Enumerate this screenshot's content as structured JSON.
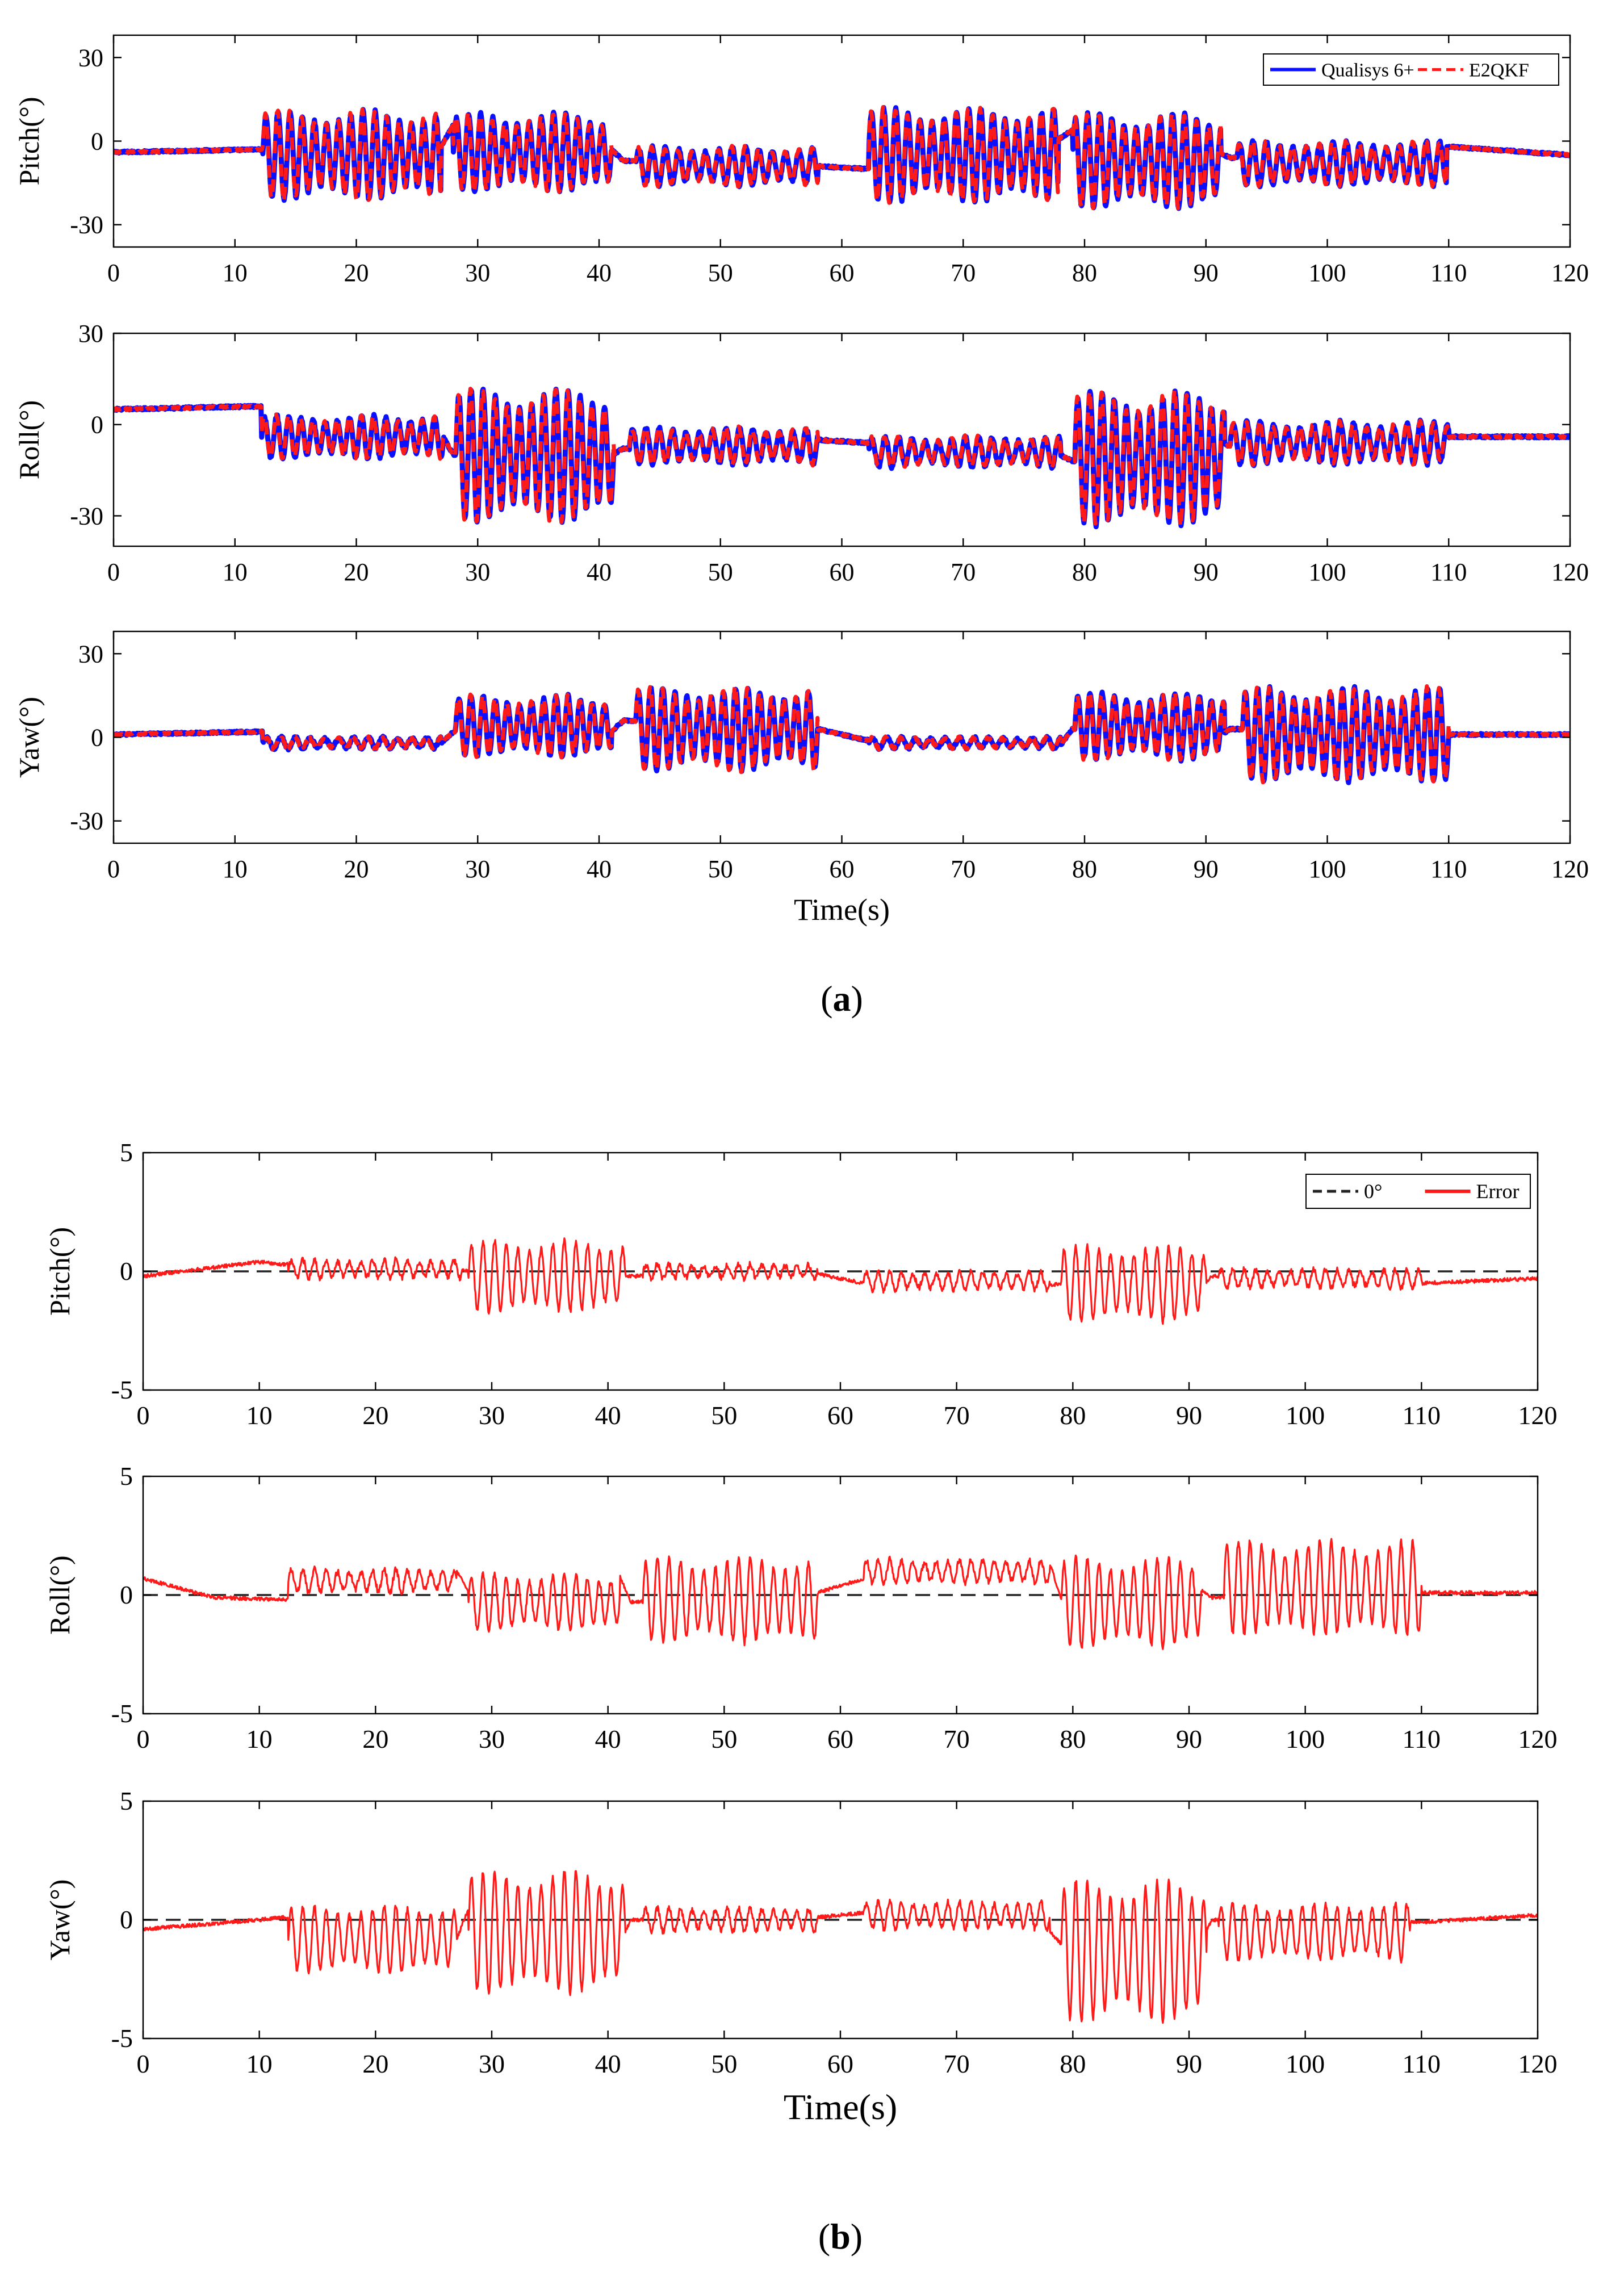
{
  "chart_data": [
    {
      "panel": "a",
      "type": "line",
      "panel_label_letter": "a",
      "panel_label_pre": "(",
      "panel_label_post": ")",
      "xlabel": "Time(s)",
      "xlim": [
        0,
        120
      ],
      "x_ticks": [
        0,
        10,
        20,
        30,
        40,
        50,
        60,
        70,
        80,
        90,
        100,
        110,
        120
      ],
      "legend": [
        {
          "name": "Qualisys 6+",
          "color": "#0a10ff",
          "style": "solid"
        },
        {
          "name": "E2QKF",
          "color": "#ff1a1a",
          "style": "dashed"
        }
      ],
      "subplots": [
        {
          "ylabel": "Pitch(°)",
          "ylim": [
            -38,
            38
          ],
          "y_ticks": [
            -30,
            0,
            30
          ],
          "baseline_points": [
            [
              0,
              -4
            ],
            [
              12,
              -3
            ],
            [
              27,
              -2
            ],
            [
              28,
              6
            ],
            [
              41,
              -3
            ],
            [
              42,
              -7
            ],
            [
              58,
              -9
            ],
            [
              62,
              -10
            ],
            [
              78,
              1
            ],
            [
              79,
              4
            ],
            [
              91,
              -4
            ],
            [
              92,
              -6
            ],
            [
              110,
              -2
            ],
            [
              120,
              -5
            ]
          ],
          "oscillation_segments": [
            {
              "t0": 12.3,
              "t1": 27.0,
              "center": -5,
              "amp": 16,
              "period": 1.0
            },
            {
              "t0": 28.0,
              "t1": 41.0,
              "center": -4,
              "amp": 14,
              "period": 1.0
            },
            {
              "t0": 43.0,
              "t1": 58.0,
              "center": -9,
              "amp": 7,
              "period": 1.1
            },
            {
              "t0": 62.2,
              "t1": 77.8,
              "center": -5,
              "amp": 17,
              "period": 1.0
            },
            {
              "t0": 79.0,
              "t1": 91.2,
              "center": -7,
              "amp": 17,
              "period": 1.0
            },
            {
              "t0": 92.5,
              "t1": 109.8,
              "center": -8,
              "amp": 8,
              "period": 1.1
            }
          ]
        },
        {
          "ylabel": "Roll(°)",
          "ylim": [
            -40,
            30
          ],
          "y_ticks": [
            -30,
            0,
            30
          ],
          "baseline_points": [
            [
              0,
              5
            ],
            [
              12,
              6
            ],
            [
              27,
              -3
            ],
            [
              28,
              -10
            ],
            [
              41,
              -10
            ],
            [
              42,
              -8
            ],
            [
              58,
              -5
            ],
            [
              62,
              -6
            ],
            [
              78,
              -10
            ],
            [
              79,
              -12
            ],
            [
              91,
              -6
            ],
            [
              92,
              -7
            ],
            [
              110,
              -4
            ],
            [
              120,
              -4
            ]
          ],
          "oscillation_segments": [
            {
              "t0": 12.2,
              "t1": 27.2,
              "center": -4,
              "amp": 7,
              "period": 1.0
            },
            {
              "t0": 28.2,
              "t1": 41.2,
              "center": -10,
              "amp": 22,
              "period": 1.0
            },
            {
              "t0": 42.5,
              "t1": 58.0,
              "center": -7,
              "amp": 6,
              "period": 1.1
            },
            {
              "t0": 62.2,
              "t1": 78.0,
              "center": -9,
              "amp": 5,
              "period": 1.1
            },
            {
              "t0": 79.2,
              "t1": 91.5,
              "center": -11,
              "amp": 22,
              "period": 1.0
            },
            {
              "t0": 92.0,
              "t1": 110.0,
              "center": -6,
              "amp": 7,
              "period": 1.1
            }
          ]
        },
        {
          "ylabel": "Yaw(°)",
          "ylim": [
            -38,
            38
          ],
          "y_ticks": [
            -30,
            0,
            30
          ],
          "baseline_points": [
            [
              0,
              1
            ],
            [
              12,
              2
            ],
            [
              27,
              -2
            ],
            [
              28,
              2
            ],
            [
              41,
              2
            ],
            [
              42,
              6
            ],
            [
              58,
              3
            ],
            [
              62,
              -1
            ],
            [
              78,
              -3
            ],
            [
              79,
              3
            ],
            [
              91,
              0
            ],
            [
              92,
              3
            ],
            [
              110,
              1
            ],
            [
              120,
              1
            ]
          ],
          "oscillation_segments": [
            {
              "t0": 12.3,
              "t1": 27.0,
              "center": -2,
              "amp": 2,
              "period": 1.2
            },
            {
              "t0": 28.2,
              "t1": 41.0,
              "center": 4,
              "amp": 11,
              "period": 1.0
            },
            {
              "t0": 43.0,
              "t1": 58.0,
              "center": 3,
              "amp": 15,
              "period": 1.0
            },
            {
              "t0": 62.2,
              "t1": 78.0,
              "center": -2,
              "amp": 2,
              "period": 1.2
            },
            {
              "t0": 79.2,
              "t1": 91.5,
              "center": 4,
              "amp": 12,
              "period": 1.0
            },
            {
              "t0": 93.0,
              "t1": 110.0,
              "center": 1,
              "amp": 17,
              "period": 1.0
            }
          ]
        }
      ]
    },
    {
      "panel": "b",
      "type": "line",
      "panel_label_letter": "b",
      "panel_label_pre": "(",
      "panel_label_post": ")",
      "xlabel": "Time(s)",
      "xlim": [
        0,
        120
      ],
      "x_ticks": [
        0,
        10,
        20,
        30,
        40,
        50,
        60,
        70,
        80,
        90,
        100,
        110,
        120
      ],
      "legend": [
        {
          "name": "0°",
          "color": "#222222",
          "style": "dashed"
        },
        {
          "name": "Error",
          "color": "#ff1a1a",
          "style": "solid"
        }
      ],
      "subplots": [
        {
          "ylabel": "Pitch(°)",
          "ylim": [
            -5,
            5
          ],
          "y_ticks": [
            -5,
            0,
            5
          ],
          "baseline_points": [
            [
              0,
              -0.2
            ],
            [
              10,
              0.4
            ],
            [
              12,
              0.3
            ],
            [
              27,
              0.1
            ],
            [
              28,
              0
            ],
            [
              41,
              -0.3
            ],
            [
              42,
              -0.2
            ],
            [
              58,
              -0.1
            ],
            [
              62,
              -0.5
            ],
            [
              78,
              -0.6
            ],
            [
              79,
              -0.5
            ],
            [
              91,
              -0.6
            ],
            [
              92,
              -0.2
            ],
            [
              110,
              -0.5
            ],
            [
              120,
              -0.3
            ]
          ],
          "oscillation_segments": [
            {
              "t0": 12.5,
              "t1": 27.5,
              "center": 0.1,
              "amp": 0.4,
              "period": 1.0
            },
            {
              "t0": 28.0,
              "t1": 41.5,
              "center": -0.2,
              "amp": 1.5,
              "period": 1.0
            },
            {
              "t0": 43.0,
              "t1": 58.0,
              "center": 0,
              "amp": 0.3,
              "period": 1.0
            },
            {
              "t0": 62.0,
              "t1": 78.0,
              "center": -0.4,
              "amp": 0.4,
              "period": 1.0
            },
            {
              "t0": 79.0,
              "t1": 91.5,
              "center": -0.5,
              "amp": 1.6,
              "period": 1.0
            },
            {
              "t0": 92.5,
              "t1": 110.0,
              "center": -0.3,
              "amp": 0.4,
              "period": 1.0
            }
          ]
        },
        {
          "ylabel": "Roll(°)",
          "ylim": [
            -5,
            5
          ],
          "y_ticks": [
            -5,
            0,
            5
          ],
          "baseline_points": [
            [
              0,
              0.7
            ],
            [
              6,
              -0.1
            ],
            [
              12,
              -0.2
            ],
            [
              27,
              1.0
            ],
            [
              28,
              0.2
            ],
            [
              41,
              0.8
            ],
            [
              42,
              -0.3
            ],
            [
              58,
              0.1
            ],
            [
              62,
              0.7
            ],
            [
              78,
              1.4
            ],
            [
              79,
              -0.2
            ],
            [
              91,
              0.2
            ],
            [
              92,
              -0.1
            ],
            [
              110,
              0.1
            ],
            [
              120,
              0.1
            ]
          ],
          "oscillation_segments": [
            {
              "t0": 12.5,
              "t1": 27.0,
              "center": 0.6,
              "amp": 0.5,
              "period": 1.0
            },
            {
              "t0": 28.0,
              "t1": 41.0,
              "center": -0.3,
              "amp": 1.2,
              "period": 1.0
            },
            {
              "t0": 43.0,
              "t1": 58.0,
              "center": -0.2,
              "amp": 1.8,
              "period": 1.0
            },
            {
              "t0": 62.0,
              "t1": 78.0,
              "center": 1.0,
              "amp": 0.5,
              "period": 1.0
            },
            {
              "t0": 79.0,
              "t1": 91.0,
              "center": -0.3,
              "amp": 1.9,
              "period": 1.0
            },
            {
              "t0": 93.0,
              "t1": 110.0,
              "center": 0.3,
              "amp": 2.0,
              "period": 1.0
            }
          ]
        },
        {
          "ylabel": "Yaw(°)",
          "ylim": [
            -5,
            5
          ],
          "y_ticks": [
            -5,
            0,
            5
          ],
          "baseline_points": [
            [
              0,
              -0.4
            ],
            [
              10,
              0
            ],
            [
              12,
              0.1
            ],
            [
              27,
              -0.8
            ],
            [
              28,
              0.5
            ],
            [
              41,
              -0.9
            ],
            [
              42,
              0
            ],
            [
              58,
              0.1
            ],
            [
              62,
              0.3
            ],
            [
              78,
              -0.5
            ],
            [
              79,
              -1.0
            ],
            [
              91,
              -0.9
            ],
            [
              92,
              0
            ],
            [
              110,
              -0.1
            ],
            [
              120,
              0.2
            ]
          ],
          "oscillation_segments": [
            {
              "t0": 12.5,
              "t1": 27.0,
              "center": -0.8,
              "amp": 1.4,
              "period": 1.0
            },
            {
              "t0": 28.0,
              "t1": 41.5,
              "center": -0.5,
              "amp": 2.6,
              "period": 1.0
            },
            {
              "t0": 43.0,
              "t1": 58.0,
              "center": 0,
              "amp": 0.5,
              "period": 1.0
            },
            {
              "t0": 62.0,
              "t1": 78.0,
              "center": 0.2,
              "amp": 0.6,
              "period": 1.0
            },
            {
              "t0": 79.0,
              "t1": 91.5,
              "center": -1.3,
              "amp": 3.0,
              "period": 1.0
            },
            {
              "t0": 92.5,
              "t1": 109.0,
              "center": -0.5,
              "amp": 1.2,
              "period": 1.0
            }
          ]
        }
      ]
    }
  ]
}
